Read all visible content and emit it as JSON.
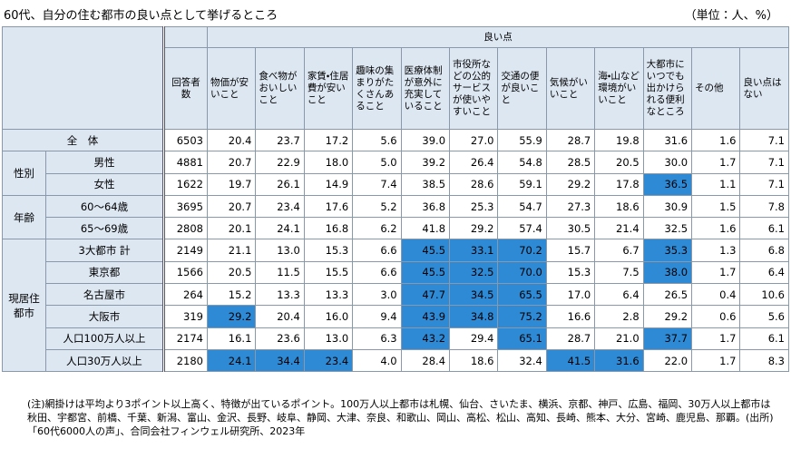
{
  "header": {
    "title": "60代、自分の住む都市の良い点として挙げるところ",
    "unit": "（単位：人、%）"
  },
  "table": {
    "group_header": "良い点",
    "columns": [
      "回答者数",
      "物価が安いこと",
      "食べ物がおいしいこと",
      "家賃・住居費が安いこと",
      "趣味の集まりがたくさんあること",
      "医療体制が意外に充実していること",
      "市役所などの公的サービスが使いやすいこと",
      "交通の便が良いこと",
      "気候がいいこと",
      "海・山など環境がいいこと",
      "大都市にいつでも出かけられる便利なところ",
      "その他",
      "良い点はない"
    ],
    "highlight_color": "#2f8ad6",
    "groups": [
      {
        "label": "全　体",
        "rows": [
          {
            "label": null,
            "values": [
              "6503",
              "20.4",
              "23.7",
              "17.2",
              "5.6",
              "39.0",
              "27.0",
              "55.9",
              "28.7",
              "19.8",
              "31.6",
              "1.6",
              "7.1"
            ],
            "highlighted": []
          }
        ]
      },
      {
        "label": "性別",
        "rows": [
          {
            "label": "男性",
            "values": [
              "4881",
              "20.7",
              "22.9",
              "18.0",
              "5.0",
              "39.2",
              "26.4",
              "54.8",
              "28.5",
              "20.5",
              "30.0",
              "1.7",
              "7.1"
            ],
            "highlighted": []
          },
          {
            "label": "女性",
            "values": [
              "1622",
              "19.7",
              "26.1",
              "14.9",
              "7.4",
              "38.5",
              "28.6",
              "59.1",
              "29.2",
              "17.8",
              "36.5",
              "1.1",
              "7.1"
            ],
            "highlighted": [
              10
            ]
          }
        ]
      },
      {
        "label": "年齢",
        "rows": [
          {
            "label": "60～64歳",
            "values": [
              "3695",
              "20.7",
              "23.4",
              "17.6",
              "5.2",
              "36.8",
              "25.3",
              "54.7",
              "27.3",
              "18.6",
              "30.9",
              "1.5",
              "7.8"
            ],
            "highlighted": []
          },
          {
            "label": "65～69歳",
            "values": [
              "2808",
              "20.1",
              "24.1",
              "16.8",
              "6.2",
              "41.8",
              "29.2",
              "57.4",
              "30.5",
              "21.4",
              "32.5",
              "1.6",
              "6.1"
            ],
            "highlighted": []
          }
        ]
      },
      {
        "label": "現居住都市",
        "rows": [
          {
            "label": "3大都市 計",
            "values": [
              "2149",
              "21.1",
              "13.0",
              "15.3",
              "6.6",
              "45.5",
              "33.1",
              "70.2",
              "15.7",
              "6.7",
              "35.3",
              "1.3",
              "6.8"
            ],
            "highlighted": [
              5,
              6,
              7,
              10
            ]
          },
          {
            "label": "東京都",
            "values": [
              "1566",
              "20.5",
              "11.5",
              "15.5",
              "6.6",
              "45.5",
              "32.5",
              "70.0",
              "15.3",
              "7.5",
              "38.0",
              "1.7",
              "6.4"
            ],
            "highlighted": [
              5,
              6,
              7,
              10
            ]
          },
          {
            "label": "名古屋市",
            "values": [
              "264",
              "15.2",
              "13.3",
              "13.3",
              "3.0",
              "47.7",
              "34.5",
              "65.5",
              "17.0",
              "6.4",
              "26.5",
              "0.4",
              "10.6"
            ],
            "highlighted": [
              5,
              6,
              7
            ]
          },
          {
            "label": "大阪市",
            "values": [
              "319",
              "29.2",
              "20.4",
              "16.0",
              "9.4",
              "43.9",
              "34.8",
              "75.2",
              "16.6",
              "2.8",
              "29.2",
              "0.6",
              "5.6"
            ],
            "highlighted": [
              1,
              5,
              6,
              7
            ]
          },
          {
            "label": "人口100万人以上",
            "values": [
              "2174",
              "16.1",
              "23.6",
              "13.0",
              "6.3",
              "43.2",
              "29.4",
              "65.1",
              "28.7",
              "21.0",
              "37.7",
              "1.7",
              "6.1"
            ],
            "highlighted": [
              5,
              7,
              10
            ]
          },
          {
            "label": "人口30万人以上",
            "values": [
              "2180",
              "24.1",
              "34.4",
              "23.4",
              "4.0",
              "28.4",
              "18.6",
              "32.4",
              "41.5",
              "31.6",
              "22.0",
              "1.7",
              "8.3"
            ],
            "highlighted": [
              1,
              2,
              3,
              8,
              9
            ]
          }
        ]
      }
    ]
  },
  "note": "(注)網掛けは平均より3ポイント以上高く、特徴が出ているポイント。100万人以上都市は札幌、仙台、さいたま、横浜、京都、神戸、広島、福岡、30万人以上都市は秋田、宇都宮、前橋、千葉、新潟、富山、金沢、長野、岐阜、静岡、大津、奈良、和歌山、岡山、高松、松山、高知、長崎、熊本、大分、宮崎、鹿児島、那覇。(出所) 「60代6000人の声」、合同会社フィンウェル研究所、2023年"
}
